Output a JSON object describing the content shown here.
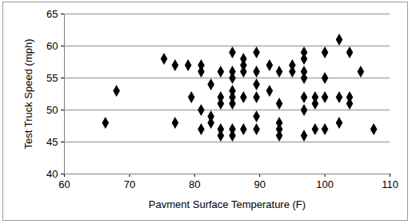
{
  "chart_data": {
    "type": "scatter",
    "xlabel": "Pavment Surface Temperature (F)",
    "ylabel": "Test Truck Speed (mph)",
    "x": [
      66.3,
      68,
      75.3,
      77,
      77,
      79,
      79.5,
      81,
      81,
      81,
      81,
      82.5,
      82.5,
      82.5,
      84,
      84,
      84,
      84,
      84,
      85.8,
      85.8,
      85.8,
      85.8,
      85.8,
      85.8,
      85.8,
      85.8,
      87.5,
      87.5,
      87.5,
      87.5,
      87.5,
      89.5,
      89.5,
      89.5,
      89.5,
      89.5,
      89.5,
      91.5,
      91.5,
      93,
      93,
      93,
      93,
      93,
      95,
      95,
      96.8,
      96.8,
      96.8,
      96.8,
      96.8,
      96.8,
      96.8,
      98.5,
      98.5,
      98.5,
      100,
      100,
      100,
      100,
      102.2,
      102.2,
      102.2,
      103.8,
      103.8,
      103.8,
      105.5,
      107.5
    ],
    "values": [
      48,
      53,
      58,
      57,
      48,
      57,
      52,
      57,
      56,
      50,
      47,
      54,
      49,
      48,
      56,
      52,
      51,
      47,
      46,
      59,
      56,
      55,
      53,
      52,
      51,
      47,
      46,
      58,
      57,
      56,
      52,
      47,
      59,
      56,
      54,
      52,
      49,
      47,
      57,
      53,
      56,
      51,
      48,
      47,
      46,
      57,
      56,
      59,
      58,
      56,
      55,
      52,
      50,
      46,
      52,
      51,
      47,
      59,
      55,
      52,
      47,
      61,
      52,
      48,
      59,
      52,
      51,
      56,
      47
    ],
    "color": "#000000",
    "marker": "diamond",
    "xlim": [
      60,
      110
    ],
    "xticks": [
      60,
      70,
      80,
      90,
      100,
      110
    ],
    "ylim": [
      40,
      65
    ],
    "yticks": [
      40,
      45,
      50,
      55,
      60,
      65
    ],
    "grid": true
  }
}
